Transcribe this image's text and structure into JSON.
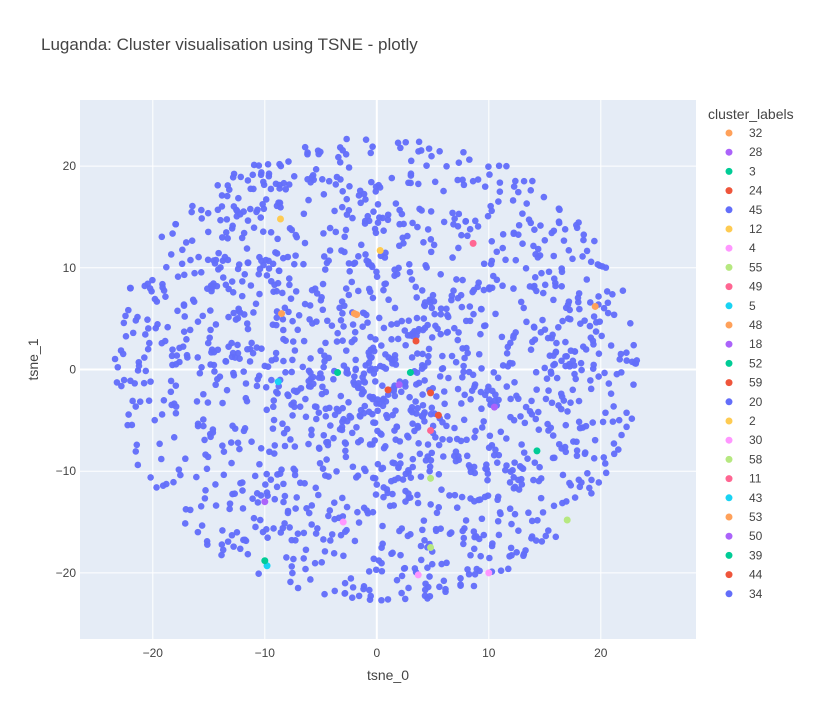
{
  "chart_data": {
    "type": "scatter",
    "title": "Luganda: Cluster visualisation using TSNE - plotly",
    "xlabel": "tsne_0",
    "ylabel": "tsne_1",
    "xlim": [
      -26.5,
      28.5
    ],
    "ylim": [
      -26.5,
      26.5
    ],
    "xticks": [
      -20,
      -10,
      0,
      10,
      20
    ],
    "yticks": [
      -20,
      -10,
      0,
      10,
      20
    ],
    "grid": true,
    "plot_background": "#e5ecf6",
    "legend": {
      "title": "cluster_labels",
      "placement": "right"
    },
    "background_cluster": {
      "label": "34",
      "color": "#636efa",
      "point_count": 1600,
      "approx_radius": 23
    },
    "series": [
      {
        "name": "32",
        "color": "#FFA15A",
        "points": [
          [
            -8.5,
            5.5
          ],
          [
            19.5,
            6.2
          ]
        ]
      },
      {
        "name": "28",
        "color": "#AB63FA",
        "points": [
          [
            10.5,
            -3.7
          ]
        ]
      },
      {
        "name": "3",
        "color": "#00CC96",
        "points": [
          [
            -3.5,
            -0.3
          ]
        ]
      },
      {
        "name": "24",
        "color": "#EF553B",
        "points": [
          [
            3.5,
            2.8
          ],
          [
            5.5,
            -4.5
          ]
        ]
      },
      {
        "name": "45",
        "color": "#636EFA",
        "points": [
          [
            -22.0,
            8.0
          ]
        ]
      },
      {
        "name": "12",
        "color": "#FECB52",
        "points": [
          [
            -8.6,
            14.8
          ]
        ]
      },
      {
        "name": "4",
        "color": "#FF97FF",
        "points": [
          [
            10.0,
            -20.0
          ]
        ]
      },
      {
        "name": "55",
        "color": "#B6E880",
        "points": [
          [
            4.8,
            -17.5
          ],
          [
            17.0,
            -14.8
          ]
        ]
      },
      {
        "name": "49",
        "color": "#FF6692",
        "points": [
          [
            8.6,
            12.4
          ]
        ]
      },
      {
        "name": "5",
        "color": "#19D3F3",
        "points": [
          [
            -8.8,
            -1.2
          ]
        ]
      },
      {
        "name": "48",
        "color": "#FFA15A",
        "points": [
          [
            -2.0,
            5.5
          ]
        ]
      },
      {
        "name": "18",
        "color": "#AB63FA",
        "points": [
          [
            -10.0,
            -13.0
          ]
        ]
      },
      {
        "name": "52",
        "color": "#00CC96",
        "points": [
          [
            14.3,
            -8.0
          ]
        ]
      },
      {
        "name": "59",
        "color": "#EF553B",
        "points": [
          [
            4.8,
            -2.3
          ]
        ]
      },
      {
        "name": "20",
        "color": "#636EFA",
        "points": [
          [
            -11.5,
            10.5
          ]
        ]
      },
      {
        "name": "2",
        "color": "#FECB52",
        "points": [
          [
            0.3,
            11.7
          ]
        ]
      },
      {
        "name": "30",
        "color": "#FF97FF",
        "points": [
          [
            -3.0,
            -15.0
          ],
          [
            3.7,
            -20.2
          ]
        ]
      },
      {
        "name": "58",
        "color": "#B6E880",
        "points": [
          [
            4.8,
            -10.7
          ]
        ]
      },
      {
        "name": "11",
        "color": "#FF6692",
        "points": [
          [
            4.8,
            -6.0
          ]
        ]
      },
      {
        "name": "43",
        "color": "#19D3F3",
        "points": [
          [
            -9.8,
            -19.3
          ]
        ]
      },
      {
        "name": "53",
        "color": "#FFA15A",
        "points": [
          [
            -1.8,
            5.4
          ]
        ]
      },
      {
        "name": "50",
        "color": "#AB63FA",
        "points": [
          [
            2.0,
            -1.5
          ]
        ]
      },
      {
        "name": "39",
        "color": "#00CC96",
        "points": [
          [
            3.0,
            -0.3
          ],
          [
            -10.0,
            -18.8
          ]
        ]
      },
      {
        "name": "44",
        "color": "#EF553B",
        "points": [
          [
            1.0,
            -2.0
          ]
        ]
      }
    ]
  }
}
